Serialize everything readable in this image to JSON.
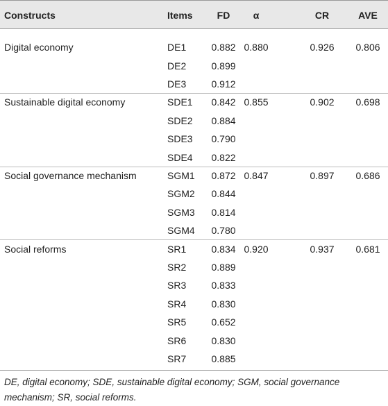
{
  "table": {
    "columns": [
      "Constructs",
      "Items",
      "FD",
      "α",
      "CR",
      "AVE"
    ],
    "groups": [
      {
        "construct": "Digital economy",
        "alpha": "0.880",
        "cr": "0.926",
        "ave": "0.806",
        "items": [
          {
            "id": "DE1",
            "fd": "0.882"
          },
          {
            "id": "DE2",
            "fd": "0.899"
          },
          {
            "id": "DE3",
            "fd": "0.912"
          }
        ]
      },
      {
        "construct": "Sustainable digital economy",
        "alpha": "0.855",
        "cr": "0.902",
        "ave": "0.698",
        "items": [
          {
            "id": "SDE1",
            "fd": "0.842"
          },
          {
            "id": "SDE2",
            "fd": "0.884"
          },
          {
            "id": "SDE3",
            "fd": "0.790"
          },
          {
            "id": "SDE4",
            "fd": "0.822"
          }
        ]
      },
      {
        "construct": "Social governance mechanism",
        "alpha": "0.847",
        "cr": "0.897",
        "ave": "0.686",
        "items": [
          {
            "id": "SGM1",
            "fd": "0.872"
          },
          {
            "id": "SGM2",
            "fd": "0.844"
          },
          {
            "id": "SGM3",
            "fd": "0.814"
          },
          {
            "id": "SGM4",
            "fd": "0.780"
          }
        ]
      },
      {
        "construct": "Social reforms",
        "alpha": "0.920",
        "cr": "0.937",
        "ave": "0.681",
        "items": [
          {
            "id": "SR1",
            "fd": "0.834"
          },
          {
            "id": "SR2",
            "fd": "0.889"
          },
          {
            "id": "SR3",
            "fd": "0.833"
          },
          {
            "id": "SR4",
            "fd": "0.830"
          },
          {
            "id": "SR5",
            "fd": "0.652"
          },
          {
            "id": "SR6",
            "fd": "0.830"
          },
          {
            "id": "SR7",
            "fd": "0.885"
          }
        ]
      }
    ]
  },
  "footnote": "DE, digital economy; SDE, sustainable digital economy; SGM, social governance mechanism; SR, social reforms."
}
